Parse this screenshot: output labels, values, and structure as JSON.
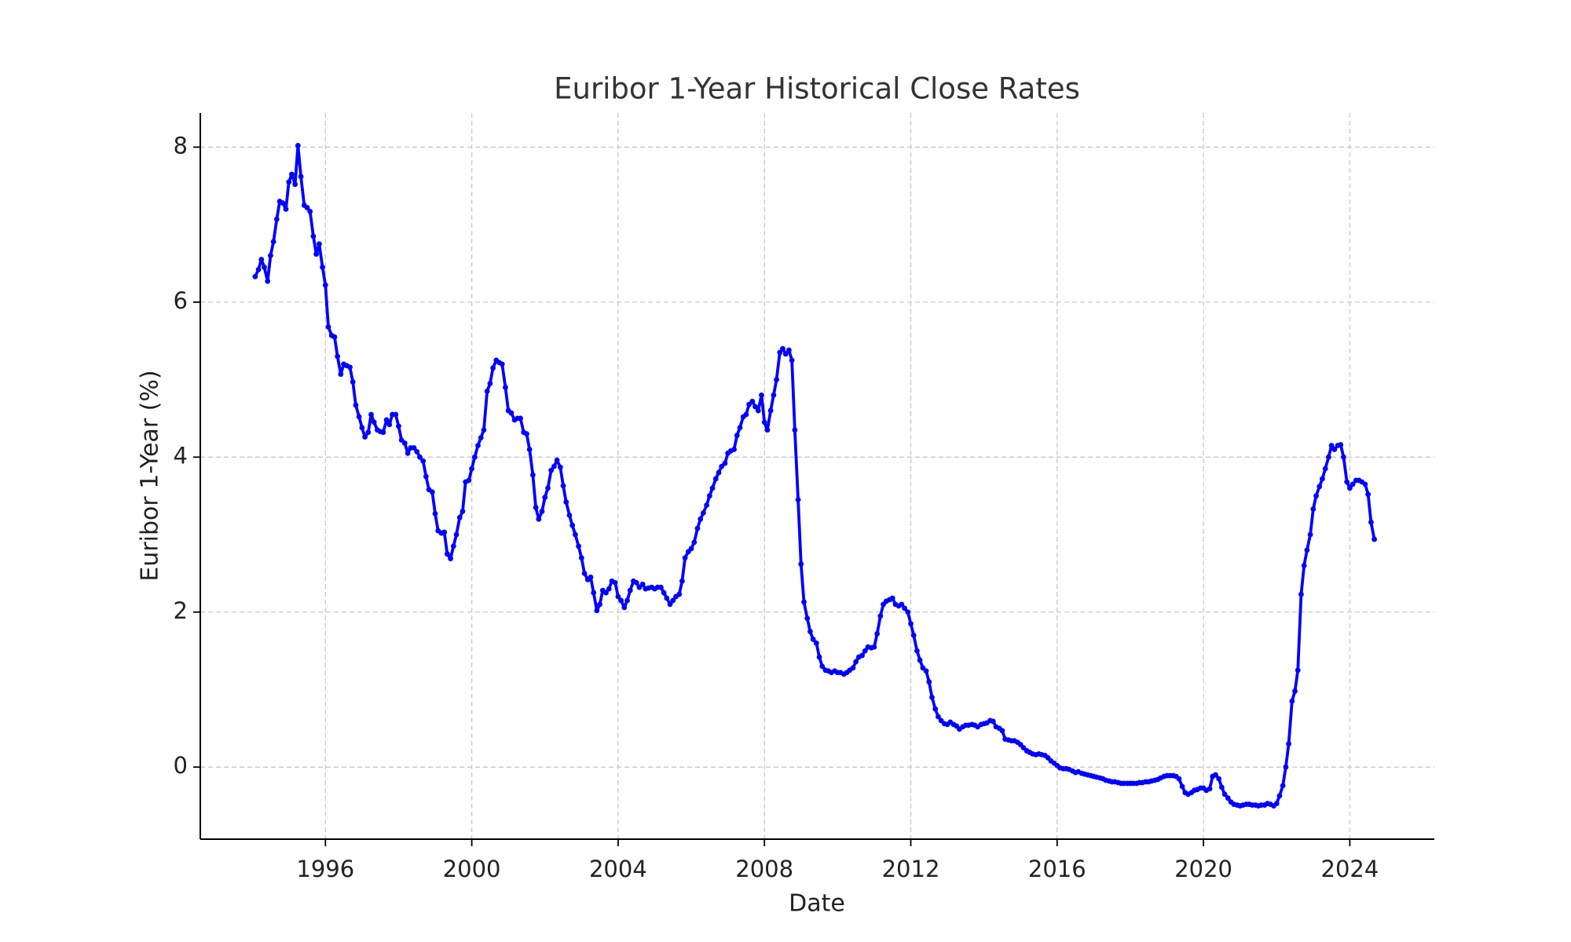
{
  "chart_data": {
    "type": "line",
    "title": "Euribor 1-Year Historical Close Rates",
    "x_label": "Date",
    "y_label": "Euribor 1-Year (%)",
    "color": "#0000ff",
    "grid": true,
    "xlim": [
      1992.58,
      2026.31
    ],
    "ylim": [
      -0.93,
      8.44
    ],
    "xticks": [
      1996,
      2000,
      2004,
      2008,
      2012,
      2016,
      2020,
      2024
    ],
    "yticks": [
      0,
      2,
      4,
      6,
      8
    ],
    "x": [
      1994.08,
      1994.17,
      1994.25,
      1994.33,
      1994.42,
      1994.5,
      1994.58,
      1994.67,
      1994.75,
      1994.83,
      1994.92,
      1995.0,
      1995.08,
      1995.17,
      1995.25,
      1995.33,
      1995.42,
      1995.5,
      1995.58,
      1995.67,
      1995.75,
      1995.83,
      1995.92,
      1996.0,
      1996.08,
      1996.17,
      1996.25,
      1996.33,
      1996.42,
      1996.5,
      1996.58,
      1996.67,
      1996.75,
      1996.83,
      1996.92,
      1997.0,
      1997.08,
      1997.17,
      1997.25,
      1997.33,
      1997.42,
      1997.5,
      1997.58,
      1997.67,
      1997.75,
      1997.83,
      1997.92,
      1998.0,
      1998.08,
      1998.17,
      1998.25,
      1998.33,
      1998.42,
      1998.5,
      1998.58,
      1998.67,
      1998.75,
      1998.83,
      1998.92,
      1999.0,
      1999.08,
      1999.17,
      1999.25,
      1999.33,
      1999.42,
      1999.5,
      1999.58,
      1999.67,
      1999.75,
      1999.83,
      1999.92,
      2000.0,
      2000.08,
      2000.17,
      2000.25,
      2000.33,
      2000.42,
      2000.5,
      2000.58,
      2000.67,
      2000.75,
      2000.83,
      2000.92,
      2001.0,
      2001.08,
      2001.17,
      2001.25,
      2001.33,
      2001.42,
      2001.5,
      2001.58,
      2001.67,
      2001.75,
      2001.83,
      2001.92,
      2002.0,
      2002.08,
      2002.17,
      2002.25,
      2002.33,
      2002.42,
      2002.5,
      2002.58,
      2002.67,
      2002.75,
      2002.83,
      2002.92,
      2003.0,
      2003.08,
      2003.17,
      2003.25,
      2003.33,
      2003.42,
      2003.5,
      2003.58,
      2003.67,
      2003.75,
      2003.83,
      2003.92,
      2004.0,
      2004.08,
      2004.17,
      2004.25,
      2004.33,
      2004.42,
      2004.5,
      2004.58,
      2004.67,
      2004.75,
      2004.83,
      2004.92,
      2005.0,
      2005.08,
      2005.17,
      2005.25,
      2005.33,
      2005.42,
      2005.5,
      2005.58,
      2005.67,
      2005.75,
      2005.83,
      2005.92,
      2006.0,
      2006.08,
      2006.17,
      2006.25,
      2006.33,
      2006.42,
      2006.5,
      2006.58,
      2006.67,
      2006.75,
      2006.83,
      2006.92,
      2007.0,
      2007.08,
      2007.17,
      2007.25,
      2007.33,
      2007.42,
      2007.5,
      2007.58,
      2007.67,
      2007.75,
      2007.83,
      2007.92,
      2008.0,
      2008.08,
      2008.17,
      2008.25,
      2008.33,
      2008.42,
      2008.5,
      2008.58,
      2008.67,
      2008.75,
      2008.83,
      2008.92,
      2009.0,
      2009.08,
      2009.17,
      2009.25,
      2009.33,
      2009.42,
      2009.5,
      2009.58,
      2009.67,
      2009.75,
      2009.83,
      2009.92,
      2010.0,
      2010.08,
      2010.17,
      2010.25,
      2010.33,
      2010.42,
      2010.5,
      2010.58,
      2010.67,
      2010.75,
      2010.83,
      2010.92,
      2011.0,
      2011.08,
      2011.17,
      2011.25,
      2011.33,
      2011.42,
      2011.5,
      2011.58,
      2011.67,
      2011.75,
      2011.83,
      2011.92,
      2012.0,
      2012.08,
      2012.17,
      2012.25,
      2012.33,
      2012.42,
      2012.5,
      2012.58,
      2012.67,
      2012.75,
      2012.83,
      2012.92,
      2013.0,
      2013.08,
      2013.17,
      2013.25,
      2013.33,
      2013.42,
      2013.5,
      2013.58,
      2013.67,
      2013.75,
      2013.83,
      2013.92,
      2014.0,
      2014.08,
      2014.17,
      2014.25,
      2014.33,
      2014.42,
      2014.5,
      2014.58,
      2014.67,
      2014.75,
      2014.83,
      2014.92,
      2015.0,
      2015.08,
      2015.17,
      2015.25,
      2015.33,
      2015.42,
      2015.5,
      2015.58,
      2015.67,
      2015.75,
      2015.83,
      2015.92,
      2016.0,
      2016.08,
      2016.17,
      2016.25,
      2016.33,
      2016.42,
      2016.5,
      2016.58,
      2016.67,
      2016.75,
      2016.83,
      2016.92,
      2017.0,
      2017.08,
      2017.17,
      2017.25,
      2017.33,
      2017.42,
      2017.5,
      2017.58,
      2017.67,
      2017.75,
      2017.83,
      2017.92,
      2018.0,
      2018.08,
      2018.17,
      2018.25,
      2018.33,
      2018.42,
      2018.5,
      2018.58,
      2018.67,
      2018.75,
      2018.83,
      2018.92,
      2019.0,
      2019.08,
      2019.17,
      2019.25,
      2019.33,
      2019.42,
      2019.5,
      2019.58,
      2019.67,
      2019.75,
      2019.83,
      2019.92,
      2020.0,
      2020.08,
      2020.17,
      2020.25,
      2020.33,
      2020.42,
      2020.5,
      2020.58,
      2020.67,
      2020.75,
      2020.83,
      2020.92,
      2021.0,
      2021.08,
      2021.17,
      2021.25,
      2021.33,
      2021.42,
      2021.5,
      2021.58,
      2021.67,
      2021.75,
      2021.83,
      2021.92,
      2022.0,
      2022.08,
      2022.17,
      2022.25,
      2022.33,
      2022.42,
      2022.5,
      2022.58,
      2022.67,
      2022.75,
      2022.83,
      2022.92,
      2023.0,
      2023.08,
      2023.17,
      2023.25,
      2023.33,
      2023.42,
      2023.5,
      2023.58,
      2023.67,
      2023.75,
      2023.83,
      2023.92,
      2024.0,
      2024.08,
      2024.17,
      2024.25,
      2024.33,
      2024.42,
      2024.5,
      2024.58,
      2024.67
    ],
    "values": [
      6.33,
      6.42,
      6.55,
      6.45,
      6.27,
      6.6,
      6.78,
      7.07,
      7.3,
      7.28,
      7.2,
      7.55,
      7.65,
      7.52,
      8.02,
      7.62,
      7.25,
      7.22,
      7.17,
      6.85,
      6.62,
      6.75,
      6.45,
      6.22,
      5.68,
      5.57,
      5.55,
      5.3,
      5.07,
      5.2,
      5.18,
      5.16,
      4.97,
      4.67,
      4.52,
      4.38,
      4.26,
      4.32,
      4.55,
      4.45,
      4.35,
      4.33,
      4.32,
      4.48,
      4.42,
      4.55,
      4.55,
      4.4,
      4.22,
      4.18,
      4.05,
      4.12,
      4.12,
      4.07,
      4.0,
      3.95,
      3.75,
      3.58,
      3.55,
      3.27,
      3.05,
      3.02,
      3.03,
      2.75,
      2.69,
      2.85,
      3.0,
      3.22,
      3.3,
      3.68,
      3.7,
      3.85,
      4.0,
      4.15,
      4.25,
      4.35,
      4.85,
      4.95,
      5.15,
      5.25,
      5.22,
      5.2,
      4.9,
      4.6,
      4.57,
      4.48,
      4.5,
      4.5,
      4.32,
      4.3,
      4.1,
      3.77,
      3.35,
      3.2,
      3.3,
      3.48,
      3.6,
      3.83,
      3.88,
      3.96,
      3.87,
      3.63,
      3.42,
      3.25,
      3.12,
      3.0,
      2.85,
      2.7,
      2.5,
      2.42,
      2.45,
      2.25,
      2.02,
      2.1,
      2.28,
      2.25,
      2.3,
      2.4,
      2.38,
      2.2,
      2.15,
      2.06,
      2.15,
      2.28,
      2.4,
      2.38,
      2.32,
      2.36,
      2.3,
      2.31,
      2.32,
      2.3,
      2.32,
      2.32,
      2.25,
      2.18,
      2.1,
      2.15,
      2.2,
      2.23,
      2.4,
      2.7,
      2.78,
      2.82,
      2.9,
      3.08,
      3.2,
      3.28,
      3.38,
      3.5,
      3.6,
      3.72,
      3.8,
      3.88,
      3.92,
      4.05,
      4.08,
      4.1,
      4.28,
      4.38,
      4.52,
      4.55,
      4.68,
      4.72,
      4.65,
      4.6,
      4.8,
      4.45,
      4.35,
      4.6,
      4.8,
      5.0,
      5.35,
      5.4,
      5.33,
      5.38,
      5.25,
      4.35,
      3.45,
      2.62,
      2.13,
      1.92,
      1.75,
      1.65,
      1.6,
      1.42,
      1.3,
      1.25,
      1.24,
      1.22,
      1.24,
      1.22,
      1.22,
      1.2,
      1.22,
      1.25,
      1.28,
      1.36,
      1.42,
      1.44,
      1.5,
      1.55,
      1.54,
      1.55,
      1.72,
      1.95,
      2.1,
      2.14,
      2.16,
      2.18,
      2.1,
      2.08,
      2.1,
      2.05,
      2.0,
      1.85,
      1.7,
      1.5,
      1.38,
      1.28,
      1.24,
      1.1,
      0.9,
      0.75,
      0.65,
      0.6,
      0.56,
      0.55,
      0.58,
      0.55,
      0.53,
      0.49,
      0.52,
      0.54,
      0.54,
      0.55,
      0.54,
      0.52,
      0.55,
      0.56,
      0.57,
      0.6,
      0.59,
      0.52,
      0.5,
      0.47,
      0.36,
      0.35,
      0.34,
      0.34,
      0.32,
      0.29,
      0.25,
      0.21,
      0.19,
      0.17,
      0.16,
      0.17,
      0.16,
      0.15,
      0.12,
      0.08,
      0.05,
      0.02,
      -0.01,
      -0.02,
      -0.02,
      -0.03,
      -0.05,
      -0.07,
      -0.06,
      -0.08,
      -0.09,
      -0.1,
      -0.11,
      -0.12,
      -0.13,
      -0.14,
      -0.15,
      -0.17,
      -0.18,
      -0.19,
      -0.19,
      -0.2,
      -0.21,
      -0.21,
      -0.21,
      -0.21,
      -0.21,
      -0.21,
      -0.2,
      -0.2,
      -0.19,
      -0.19,
      -0.18,
      -0.17,
      -0.16,
      -0.14,
      -0.12,
      -0.11,
      -0.11,
      -0.11,
      -0.12,
      -0.15,
      -0.25,
      -0.33,
      -0.35,
      -0.33,
      -0.3,
      -0.29,
      -0.27,
      -0.27,
      -0.3,
      -0.28,
      -0.12,
      -0.1,
      -0.15,
      -0.26,
      -0.35,
      -0.4,
      -0.45,
      -0.48,
      -0.49,
      -0.5,
      -0.49,
      -0.48,
      -0.48,
      -0.49,
      -0.49,
      -0.5,
      -0.49,
      -0.49,
      -0.47,
      -0.48,
      -0.5,
      -0.47,
      -0.37,
      -0.24,
      0.0,
      0.3,
      0.85,
      0.98,
      1.25,
      2.23,
      2.6,
      2.8,
      3.0,
      3.33,
      3.5,
      3.62,
      3.72,
      3.85,
      4.0,
      4.15,
      4.1,
      4.15,
      4.16,
      4.0,
      3.68,
      3.6,
      3.65,
      3.7,
      3.7,
      3.68,
      3.65,
      3.52,
      3.16,
      2.94
    ]
  }
}
